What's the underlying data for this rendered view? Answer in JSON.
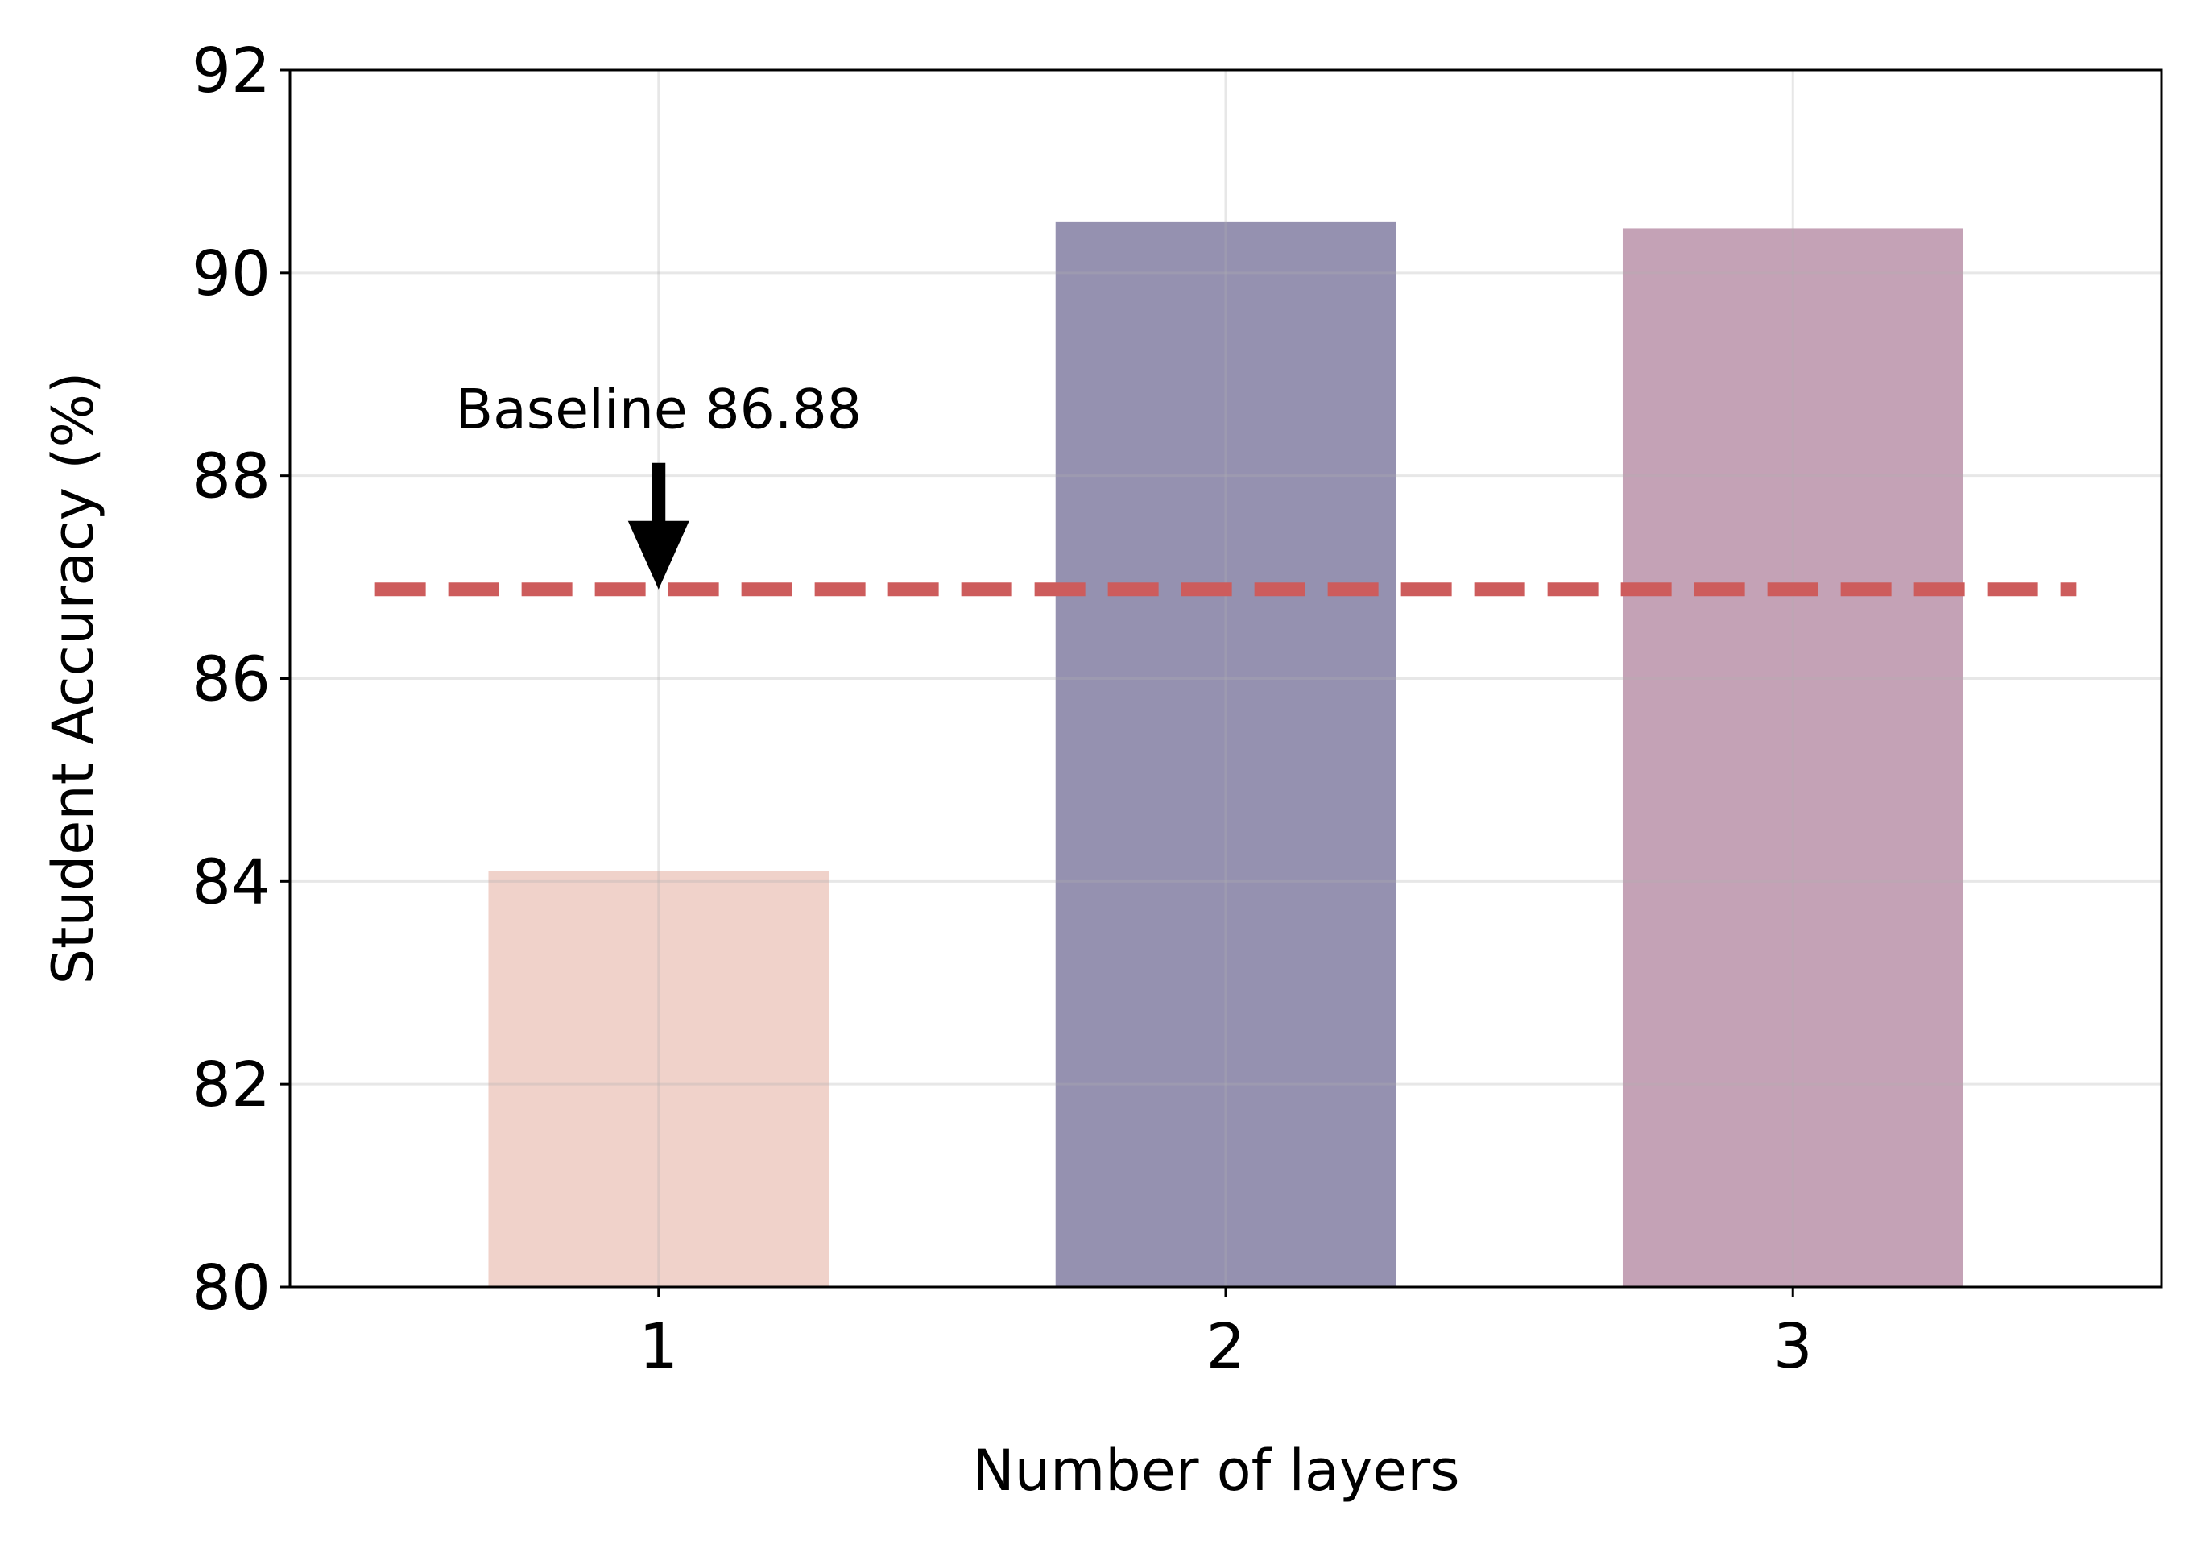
{
  "chart_data": {
    "type": "bar",
    "x_label": "Number of layers",
    "y_label": "Student Accuracy (%)",
    "x": [
      1,
      2,
      3
    ],
    "values": [
      84.1,
      90.5,
      90.44
    ],
    "colors": [
      "#f0d2ca",
      "#9591b0",
      "#c4a2b6"
    ],
    "bar_width": 0.6,
    "xlim": [
      0.35,
      3.65
    ],
    "xticks": [
      1,
      2,
      3
    ],
    "ylim": [
      80,
      92
    ],
    "yticks": [
      80,
      82,
      84,
      86,
      88,
      90,
      92
    ],
    "grid": true,
    "baseline": {
      "value": 86.88,
      "label": "Baseline 86.88",
      "color": "#cd5c5c",
      "x_range": [
        0.5,
        3.5
      ],
      "x": 1
    }
  }
}
